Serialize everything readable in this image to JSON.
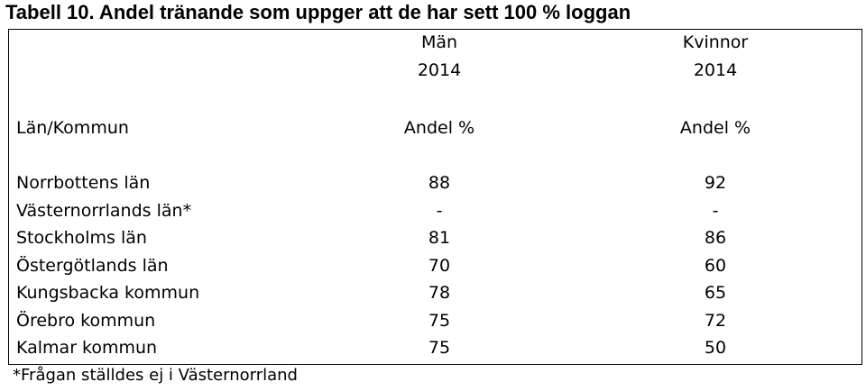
{
  "title": "Tabell 10. Andel tränande som uppger att de har sett 100 % loggan",
  "table": {
    "header_groups": [
      {
        "label": "Män",
        "year": "2014"
      },
      {
        "label": "Kvinnor",
        "year": "2014"
      }
    ],
    "columns": [
      "Län/Kommun",
      "Andel %",
      "Andel %"
    ],
    "rows": [
      [
        "Norrbottens län",
        88,
        92
      ],
      [
        "Västernorrlands län*",
        "-",
        "-"
      ],
      [
        "Stockholms län",
        81,
        86
      ],
      [
        "Östergötlands län",
        70,
        60
      ],
      [
        "Kungsbacka kommun",
        78,
        65
      ],
      [
        "Örebro kommun",
        75,
        72
      ],
      [
        "Kalmar kommun",
        75,
        50
      ]
    ]
  },
  "footnote": "*Frågan ställdes ej i Västernorrland"
}
